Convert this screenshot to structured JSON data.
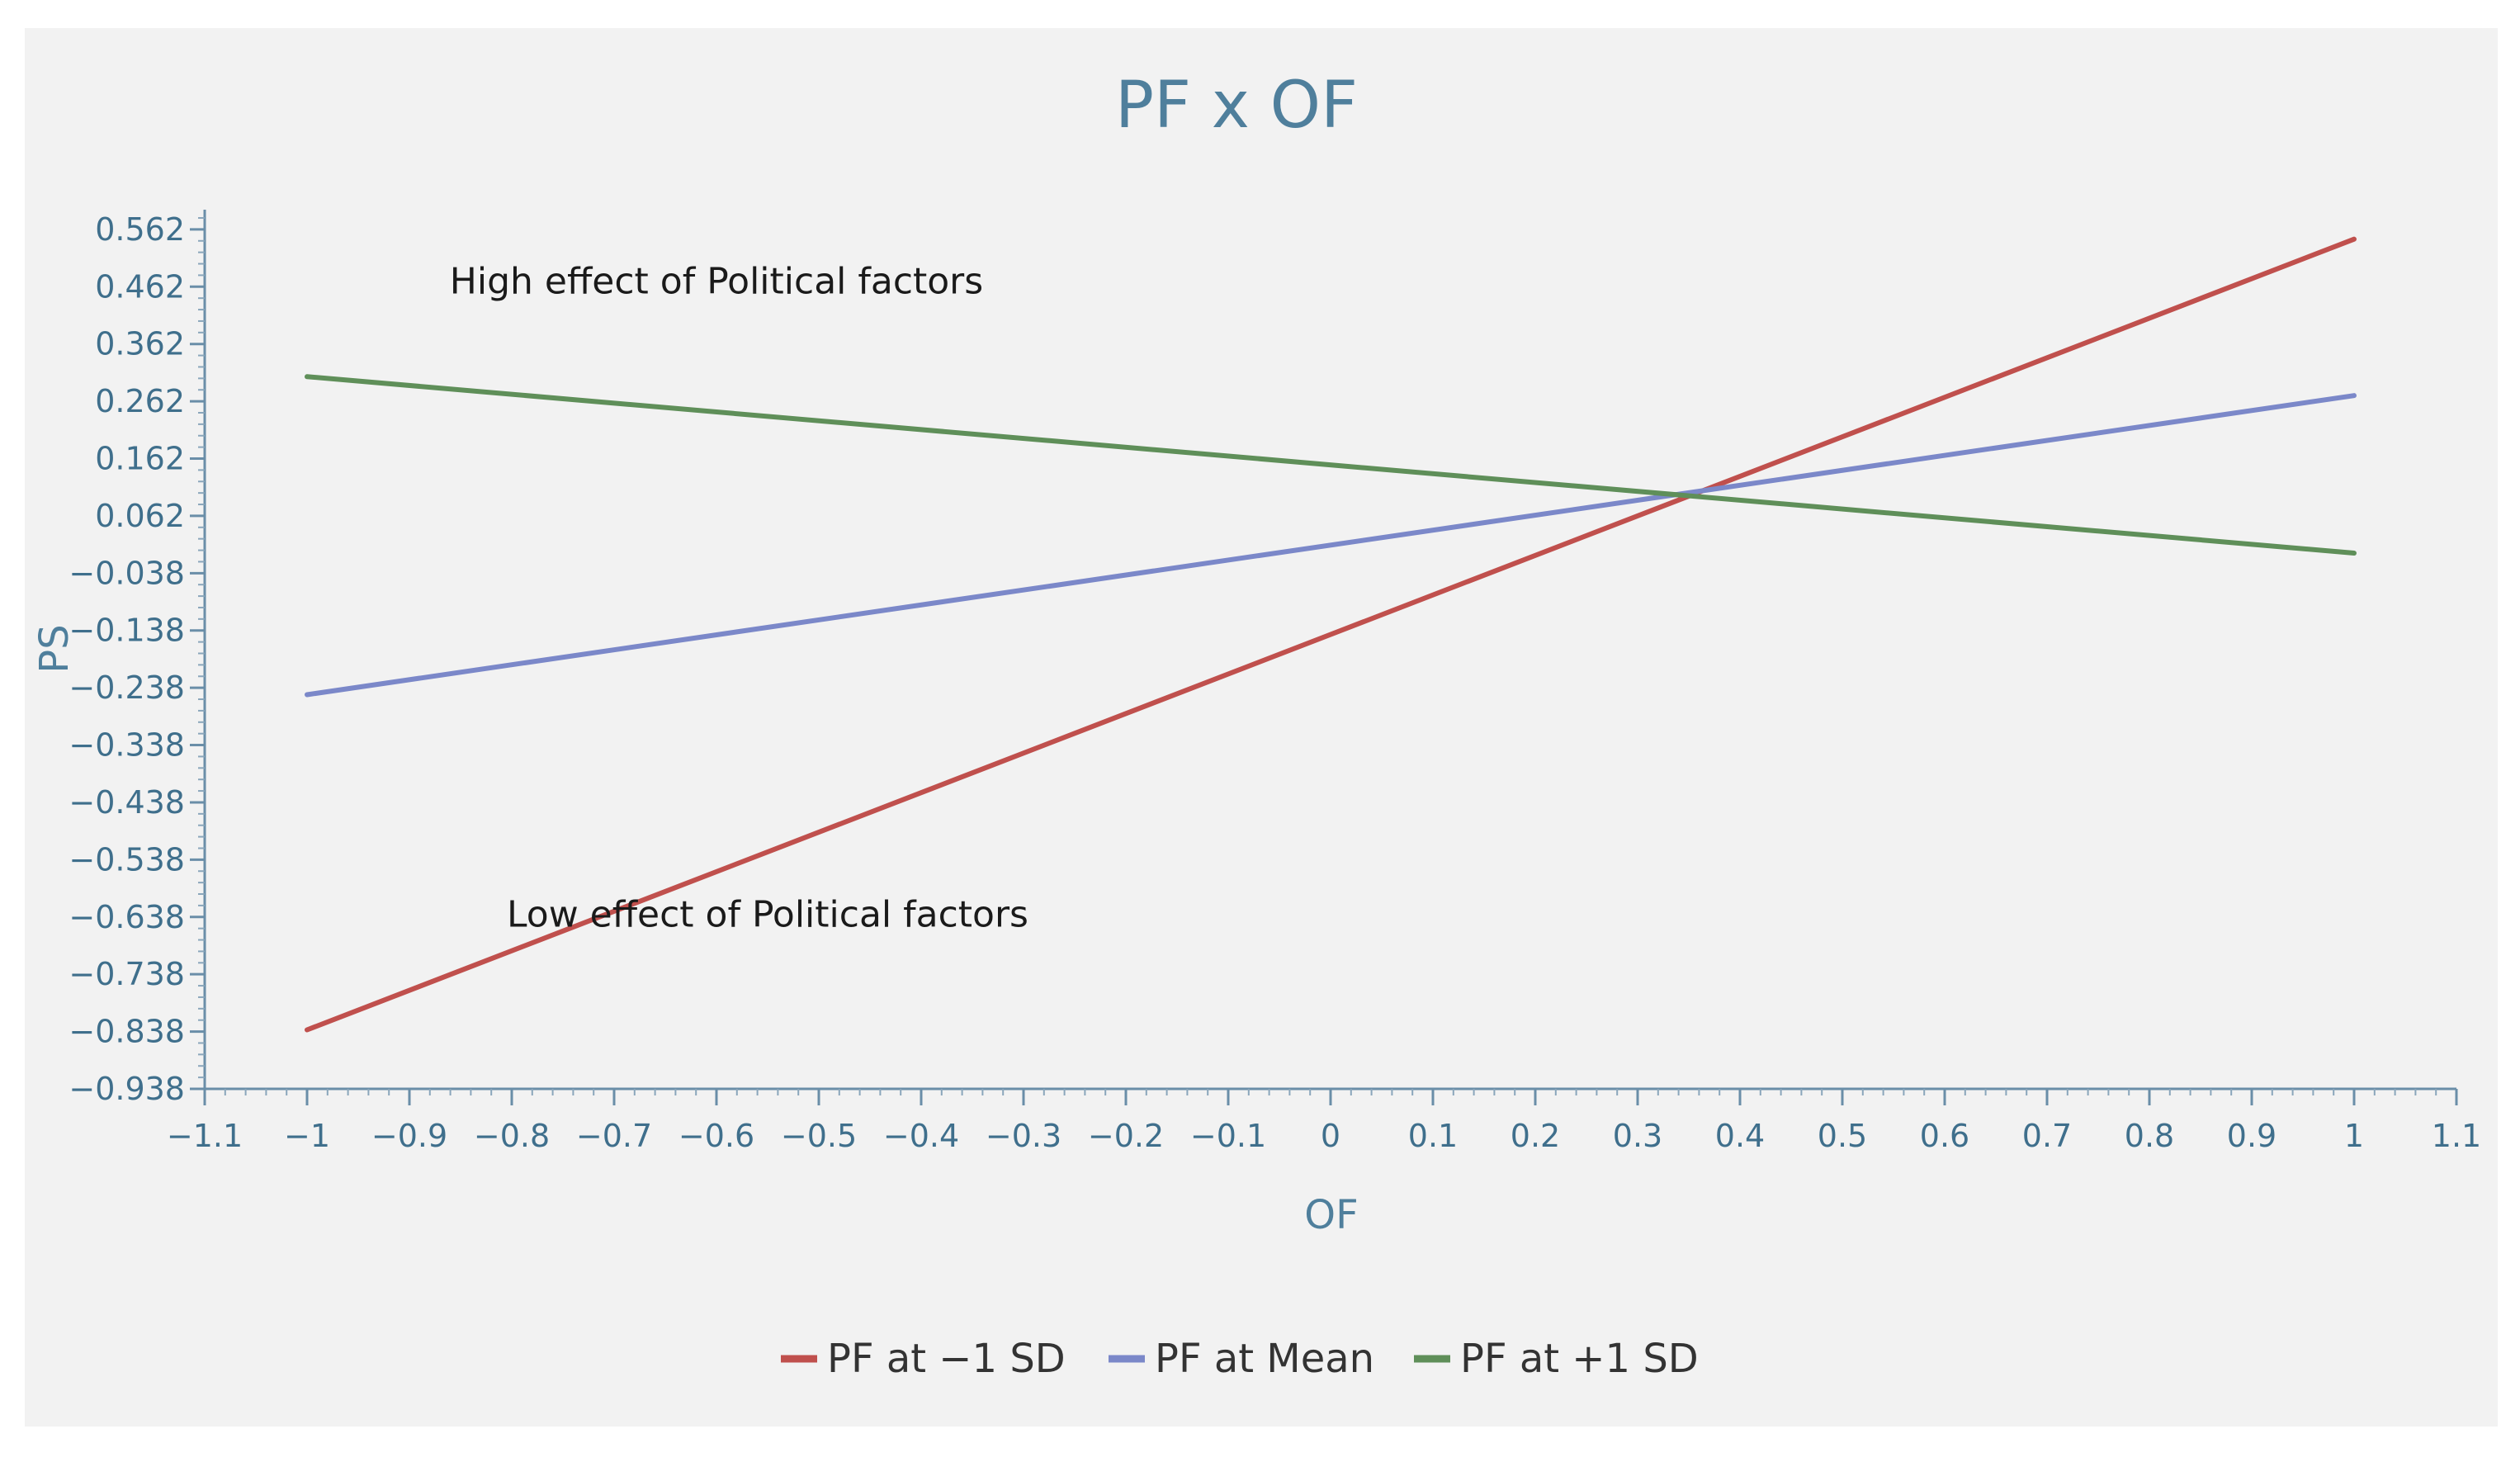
{
  "chart_data": {
    "type": "line",
    "title": "PF x OF",
    "xlabel": "OF",
    "ylabel": "PS",
    "xlim": [
      -1.1,
      1.1
    ],
    "ylim": [
      -0.938,
      0.582
    ],
    "x_ticks": [
      -1.1,
      -1,
      -0.9,
      -0.8,
      -0.7,
      -0.6,
      -0.5,
      -0.4,
      -0.3,
      -0.2,
      -0.1,
      0,
      0.1,
      0.2,
      0.3,
      0.4,
      0.5,
      0.6,
      0.7,
      0.8,
      0.9,
      1,
      1.1
    ],
    "x_tick_labels": [
      "−1.1",
      "−1",
      "−0.9",
      "−0.8",
      "−0.7",
      "−0.6",
      "−0.5",
      "−0.4",
      "−0.3",
      "−0.2",
      "−0.1",
      "0",
      "0.1",
      "0.2",
      "0.3",
      "0.4",
      "0.5",
      "0.6",
      "0.7",
      "0.8",
      "0.9",
      "1",
      "1.1"
    ],
    "y_ticks": [
      0.562,
      0.462,
      0.362,
      0.262,
      0.162,
      0.062,
      -0.038,
      -0.138,
      -0.238,
      -0.338,
      -0.438,
      -0.538,
      -0.638,
      -0.738,
      -0.838,
      -0.938
    ],
    "y_tick_labels": [
      "0.562",
      "0.462",
      "0.362",
      "0.262",
      "0.162",
      "0.062",
      "−0.038",
      "−0.138",
      "−0.238",
      "−0.338",
      "−0.438",
      "−0.538",
      "−0.638",
      "−0.738",
      "−0.838",
      "−0.938"
    ],
    "series": [
      {
        "name": "PF at −1 SD",
        "color": "#c0504d",
        "x": [
          -1,
          1
        ],
        "y": [
          -0.835,
          0.545
        ]
      },
      {
        "name": "PF at Mean",
        "color": "#7b88c9",
        "x": [
          -1,
          1
        ],
        "y": [
          -0.25,
          0.272
        ]
      },
      {
        "name": "PF at +1 SD",
        "color": "#5f8f59",
        "x": [
          -1,
          1
        ],
        "y": [
          0.305,
          -0.003
        ]
      }
    ],
    "annotations": [
      {
        "text": "High effect of Political factors",
        "x": -0.6,
        "y": 0.45
      },
      {
        "text": "Low effect of Political factors",
        "x": -0.55,
        "y": -0.655
      }
    ],
    "legend_position": "bottom-center"
  }
}
